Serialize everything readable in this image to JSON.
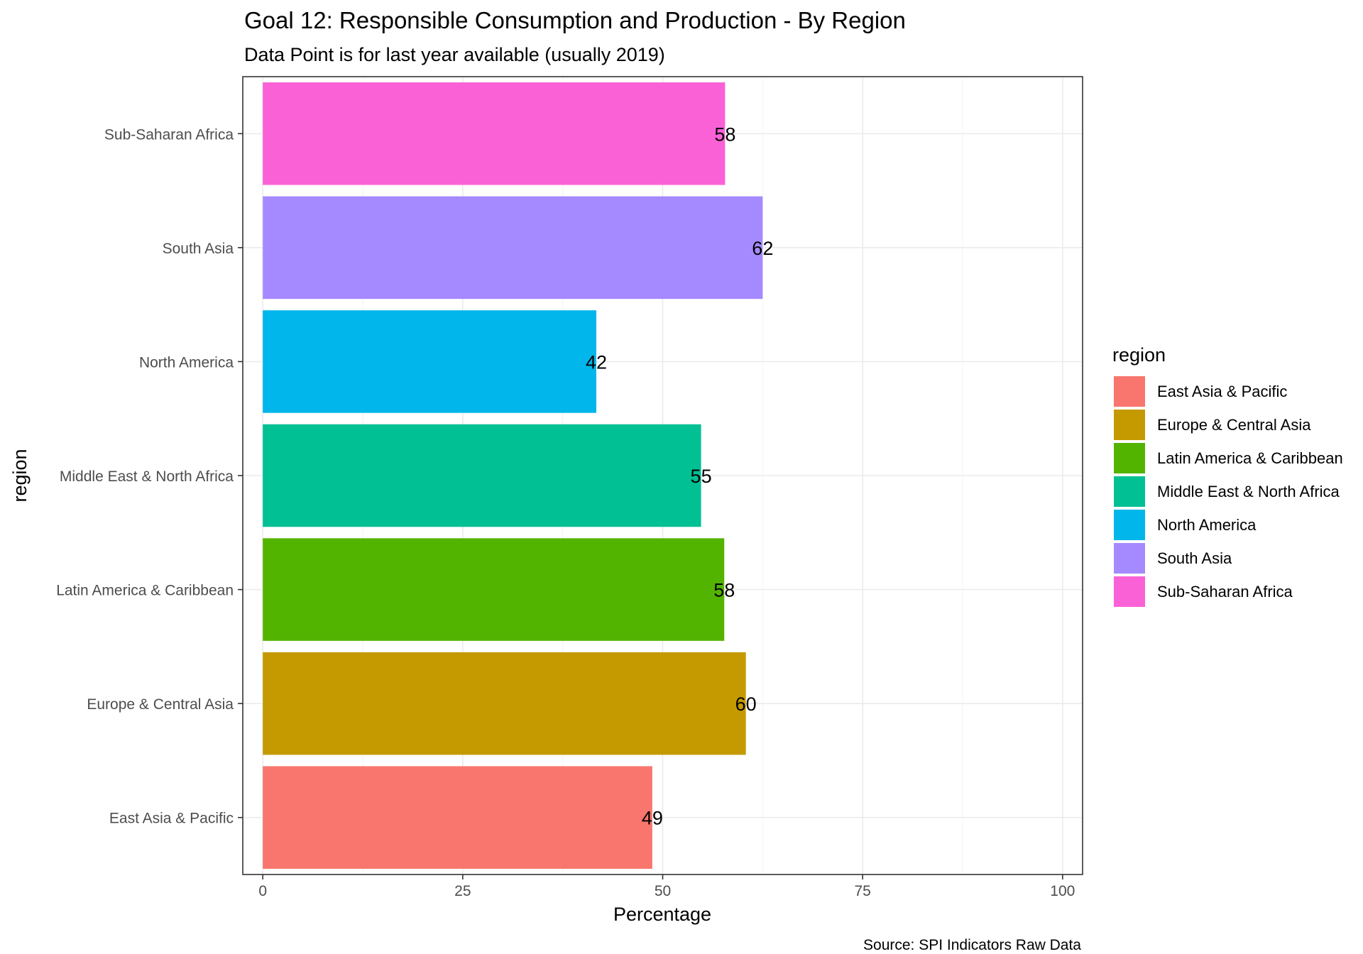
{
  "chart_data": {
    "type": "bar",
    "orientation": "horizontal",
    "title": "Goal 12: Responsible Consumption and Production - By Region",
    "subtitle": "Data Point is for last year available (usually 2019)",
    "xlabel": "Percentage",
    "ylabel": "region",
    "caption": "Source: SPI Indicators Raw Data",
    "xlim": [
      0,
      105
    ],
    "xticks": [
      0,
      25,
      50,
      75,
      100
    ],
    "grid": true,
    "legend_position": "right",
    "legend_title": "region",
    "categories": [
      "East Asia & Pacific",
      "Europe & Central Asia",
      "Latin America & Caribbean",
      "Middle East & North Africa",
      "North America",
      "South Asia",
      "Sub-Saharan Africa"
    ],
    "values": [
      48.7,
      60.4,
      57.7,
      54.8,
      41.7,
      62.5,
      57.8
    ],
    "value_labels": [
      "49",
      "60",
      "58",
      "55",
      "42",
      "62",
      "58"
    ],
    "colors": [
      "#F8766D",
      "#C49A00",
      "#53B400",
      "#00C094",
      "#00B6EB",
      "#A58AFF",
      "#FB61D7"
    ]
  }
}
